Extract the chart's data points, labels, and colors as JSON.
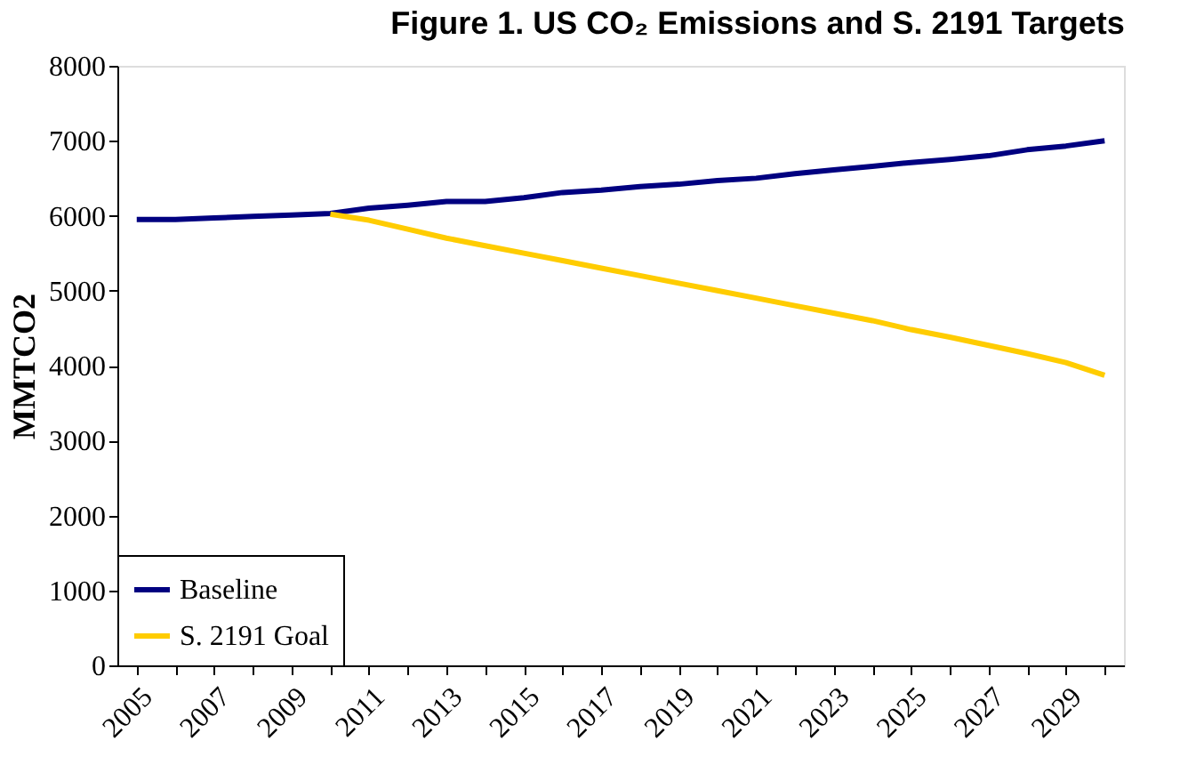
{
  "chart_data": {
    "type": "line",
    "title": "Figure 1. US CO₂ Emissions and S. 2191 Targets",
    "ylabel": "MMTCO2",
    "categories": [
      "2005",
      null,
      "2007",
      null,
      "2009",
      null,
      "2011",
      null,
      "2013",
      null,
      "2015",
      null,
      "2017",
      null,
      "2019",
      null,
      "2021",
      null,
      "2023",
      null,
      "2025",
      null,
      "2027",
      null,
      "2029",
      null
    ],
    "series": [
      {
        "name": "Baseline",
        "color": "#000080",
        "values": [
          5950,
          5950,
          5970,
          5990,
          6010,
          6030,
          6100,
          6140,
          6190,
          6190,
          6240,
          6310,
          6340,
          6390,
          6420,
          6470,
          6500,
          6560,
          6610,
          6660,
          6710,
          6750,
          6800,
          6880,
          6930,
          7000
        ]
      },
      {
        "name": "S. 2191 Goal",
        "color": "#ffcc00",
        "values": [
          null,
          null,
          null,
          null,
          null,
          6020,
          5940,
          5820,
          5700,
          5600,
          5500,
          5400,
          5300,
          5200,
          5100,
          5000,
          4900,
          4800,
          4700,
          4600,
          4480,
          4380,
          4270,
          4160,
          4040,
          3870
        ]
      }
    ],
    "ylim": [
      0,
      8000
    ],
    "yticks": [
      0,
      1000,
      2000,
      3000,
      4000,
      5000,
      6000,
      7000,
      8000
    ],
    "grid": false,
    "legend": "bottom left",
    "marker": "none",
    "line_style": "solid"
  }
}
